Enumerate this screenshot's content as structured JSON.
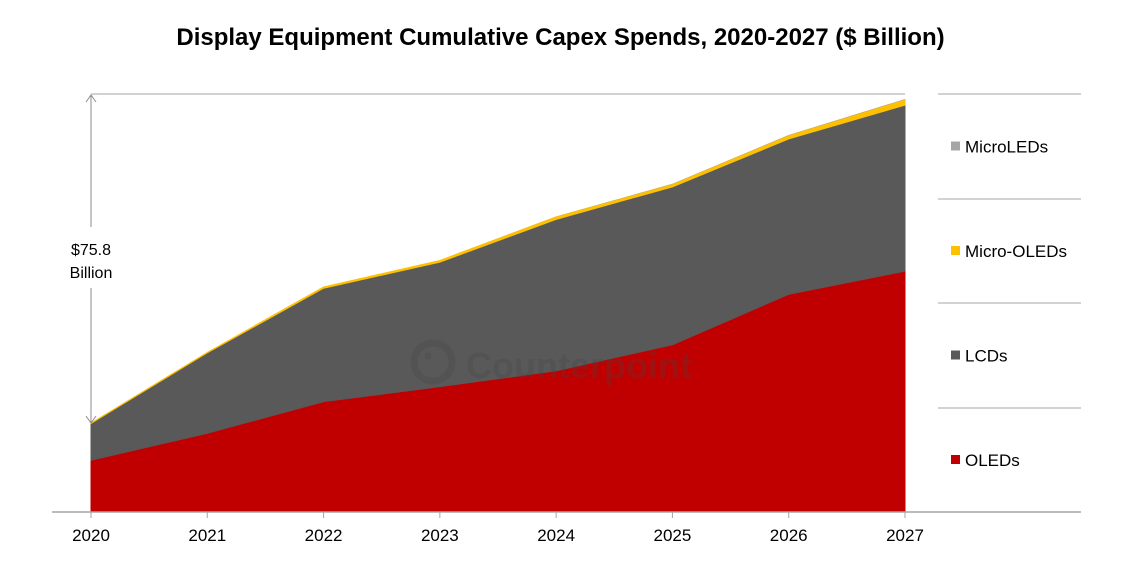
{
  "chart_data": {
    "type": "area",
    "stacked": true,
    "title": "Display Equipment Cumulative Capex Spends, 2020-2027 ($ Billion)",
    "categories": [
      "2020",
      "2021",
      "2022",
      "2023",
      "2024",
      "2025",
      "2026",
      "2027"
    ],
    "series": [
      {
        "name": "OLEDs",
        "color": "#c00000",
        "values": [
          12.1,
          18.4,
          25.8,
          29.3,
          33.0,
          39.1,
          50.9,
          56.3
        ]
      },
      {
        "name": "LCDs",
        "color": "#595959",
        "values": [
          8.6,
          18.8,
          26.5,
          29.1,
          35.4,
          36.9,
          36.3,
          38.8
        ]
      },
      {
        "name": "Micro-OLEDs",
        "color": "#ffc000",
        "values": [
          0.05,
          0.1,
          0.3,
          0.4,
          0.6,
          0.6,
          0.8,
          1.3
        ]
      },
      {
        "name": "MicroLEDs",
        "color": "#a5a5a5",
        "values": [
          0,
          0,
          0,
          0,
          0.05,
          0.1,
          0.1,
          0.1
        ]
      }
    ],
    "ylim": [
      0,
      97
    ],
    "grid": false,
    "y_axis_labels_shown": false,
    "legend_placement": "right",
    "annotation": {
      "line1": "$75.8",
      "line2": "Billion"
    },
    "watermark": "Counterpoint"
  }
}
